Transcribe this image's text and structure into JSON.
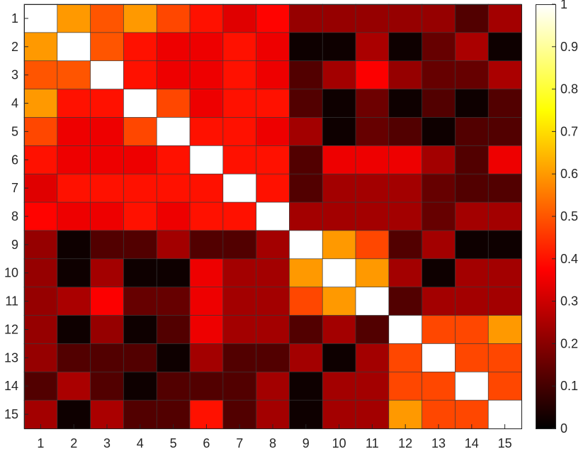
{
  "chart_data": {
    "type": "heatmap",
    "title": "",
    "xlabel": "",
    "ylabel": "",
    "x_categories": [
      "1",
      "2",
      "3",
      "4",
      "5",
      "6",
      "7",
      "8",
      "9",
      "10",
      "11",
      "12",
      "13",
      "14",
      "15"
    ],
    "y_categories": [
      "1",
      "2",
      "3",
      "4",
      "5",
      "6",
      "7",
      "8",
      "9",
      "10",
      "11",
      "12",
      "13",
      "14",
      "15"
    ],
    "values": [
      [
        1.0,
        0.6,
        0.5,
        0.6,
        0.48,
        0.4,
        0.33,
        0.38,
        0.22,
        0.22,
        0.22,
        0.22,
        0.22,
        0.12,
        0.24
      ],
      [
        0.6,
        1.0,
        0.5,
        0.4,
        0.35,
        0.35,
        0.4,
        0.35,
        0.02,
        0.02,
        0.25,
        0.02,
        0.15,
        0.25,
        0.02
      ],
      [
        0.5,
        0.5,
        1.0,
        0.4,
        0.35,
        0.35,
        0.4,
        0.35,
        0.12,
        0.24,
        0.37,
        0.22,
        0.15,
        0.15,
        0.25
      ],
      [
        0.6,
        0.4,
        0.4,
        1.0,
        0.48,
        0.35,
        0.4,
        0.4,
        0.12,
        0.02,
        0.16,
        0.02,
        0.12,
        0.02,
        0.12
      ],
      [
        0.48,
        0.35,
        0.35,
        0.48,
        1.0,
        0.4,
        0.4,
        0.35,
        0.24,
        0.02,
        0.15,
        0.12,
        0.02,
        0.12,
        0.12
      ],
      [
        0.4,
        0.35,
        0.35,
        0.35,
        0.4,
        1.0,
        0.4,
        0.4,
        0.12,
        0.35,
        0.35,
        0.35,
        0.24,
        0.12,
        0.35
      ],
      [
        0.33,
        0.4,
        0.4,
        0.4,
        0.4,
        0.4,
        1.0,
        0.4,
        0.12,
        0.24,
        0.24,
        0.24,
        0.15,
        0.12,
        0.12
      ],
      [
        0.38,
        0.35,
        0.35,
        0.4,
        0.35,
        0.4,
        0.4,
        1.0,
        0.24,
        0.24,
        0.24,
        0.24,
        0.15,
        0.24,
        0.24
      ],
      [
        0.22,
        0.02,
        0.12,
        0.12,
        0.24,
        0.12,
        0.12,
        0.24,
        1.0,
        0.6,
        0.48,
        0.12,
        0.24,
        0.02,
        0.02
      ],
      [
        0.22,
        0.02,
        0.24,
        0.02,
        0.02,
        0.35,
        0.24,
        0.24,
        0.6,
        1.0,
        0.6,
        0.24,
        0.02,
        0.24,
        0.24
      ],
      [
        0.22,
        0.25,
        0.37,
        0.15,
        0.15,
        0.35,
        0.24,
        0.24,
        0.48,
        0.6,
        1.0,
        0.12,
        0.24,
        0.24,
        0.24
      ],
      [
        0.22,
        0.02,
        0.22,
        0.02,
        0.12,
        0.35,
        0.24,
        0.24,
        0.12,
        0.24,
        0.12,
        1.0,
        0.48,
        0.48,
        0.6
      ],
      [
        0.22,
        0.12,
        0.12,
        0.12,
        0.02,
        0.24,
        0.12,
        0.12,
        0.24,
        0.02,
        0.24,
        0.48,
        1.0,
        0.48,
        0.48
      ],
      [
        0.12,
        0.25,
        0.12,
        0.02,
        0.12,
        0.12,
        0.12,
        0.24,
        0.02,
        0.24,
        0.24,
        0.48,
        0.48,
        1.0,
        0.48
      ],
      [
        0.24,
        0.02,
        0.25,
        0.12,
        0.12,
        0.4,
        0.12,
        0.24,
        0.02,
        0.24,
        0.24,
        0.6,
        0.48,
        0.48,
        1.0
      ]
    ],
    "colorbar": {
      "colormap": "hot",
      "range": [
        0,
        1
      ],
      "ticks": [
        0,
        0.1,
        0.2,
        0.3,
        0.4,
        0.5,
        0.6,
        0.7,
        0.8,
        0.9,
        1
      ],
      "tick_labels": [
        "0",
        "0.1",
        "0.2",
        "0.3",
        "0.4",
        "0.5",
        "0.6",
        "0.7",
        "0.8",
        "0.9",
        "1"
      ]
    },
    "grid": true,
    "legend": "none"
  }
}
